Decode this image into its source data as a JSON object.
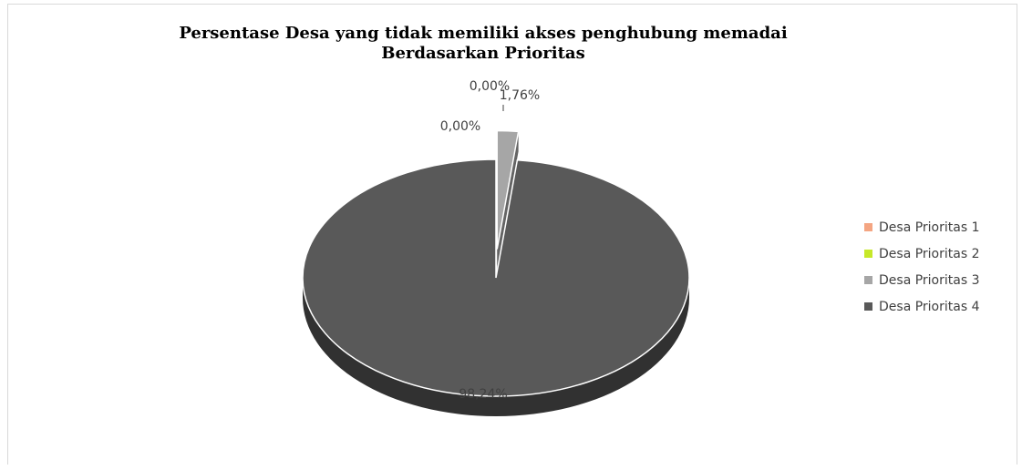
{
  "chart_data": {
    "type": "pie",
    "title_lines": [
      "Persentase Desa yang tidak memiliki akses  penghubung memadai",
      "Berdasarkan Prioritas"
    ],
    "series": [
      {
        "name": "Desa Prioritas",
        "slices": [
          {
            "label": "Desa Prioritas 1",
            "value": 0.0,
            "data_label": "0,00%",
            "color": "#f4a582"
          },
          {
            "label": "Desa Prioritas 2",
            "value": 0.0,
            "data_label": "0,00%",
            "color": "#c6e829"
          },
          {
            "label": "Desa Prioritas 3",
            "value": 1.76,
            "data_label": "1,76%",
            "color": "#a6a6a6"
          },
          {
            "label": "Desa Prioritas 4",
            "value": 98.24,
            "data_label": "98,24%",
            "color": "#595959"
          }
        ]
      }
    ],
    "legend_position": "right",
    "style": "3d-pie-exploded"
  }
}
